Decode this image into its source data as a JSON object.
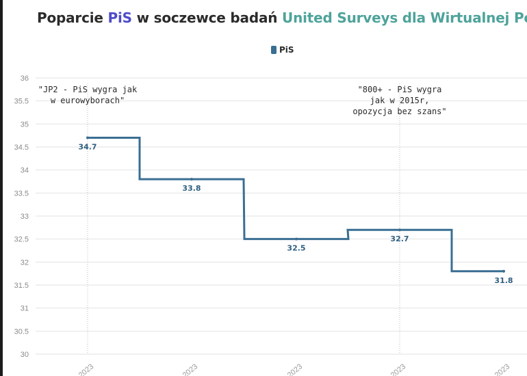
{
  "title": {
    "part1": "Poparcie ",
    "part2": "PiS",
    "part3": " w soczewce badań ",
    "part4": "United Surveys dla Wirtualnej Pols"
  },
  "legend": {
    "label": "PiS"
  },
  "colors": {
    "series": "#3a6e93",
    "title_accent_1": "#4f4bc9",
    "title_accent_2": "#4ea39a",
    "grid": "#e2e2e2",
    "vline": "#bdbdbd"
  },
  "chart_data": {
    "type": "line",
    "step": true,
    "title": "Poparcie PiS w soczewce badań United Surveys dla Wirtualnej Pols",
    "series": [
      {
        "name": "PiS",
        "values": [
          34.7,
          33.8,
          32.5,
          32.7,
          31.8
        ]
      }
    ],
    "x": [
      "2023",
      "2023",
      "2023",
      "2023",
      "2023"
    ],
    "ylim": [
      30,
      36
    ],
    "yticks": [
      "36",
      "35.5",
      "35",
      "34.5",
      "34",
      "33.5",
      "33",
      "32.5",
      "32",
      "31.5",
      "31",
      "30.5",
      "30"
    ],
    "grid": true,
    "legend_position": "top-center",
    "annotations": [
      {
        "lines": [
          "\"JP2 - PiS wygra jak",
          "w eurowyborach\""
        ]
      },
      {
        "lines": [
          "\"800+ - PiS wygra",
          "jak w 2015r,",
          "opozycja bez szans\""
        ]
      }
    ]
  }
}
